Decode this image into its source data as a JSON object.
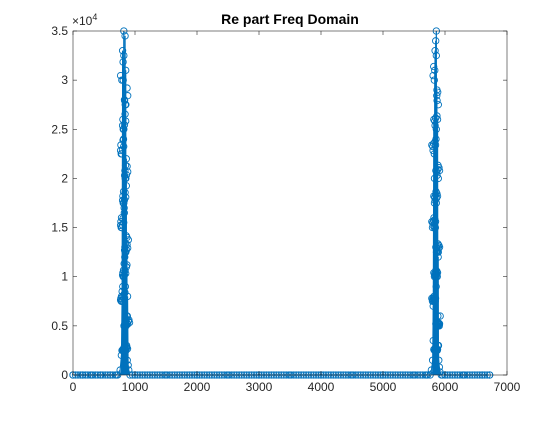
{
  "chart_data": {
    "type": "scatter",
    "title": "Re part Freq Domain",
    "xlabel": "",
    "ylabel": "",
    "xlim": [
      0,
      7000
    ],
    "ylim": [
      0,
      35000
    ],
    "y_exponent_label": "×10",
    "y_exponent_power": "4",
    "x_ticks": [
      0,
      1000,
      2000,
      3000,
      4000,
      5000,
      6000,
      7000
    ],
    "x_tick_labels": [
      "0",
      "1000",
      "2000",
      "3000",
      "4000",
      "5000",
      "6000",
      "7000"
    ],
    "y_ticks": [
      0,
      5000,
      10000,
      15000,
      20000,
      25000,
      30000,
      35000
    ],
    "y_tick_labels": [
      "0",
      "0.5",
      "1",
      "1.5",
      "2",
      "2.5",
      "3",
      "3.5"
    ],
    "grid": false,
    "color": "#0072BD",
    "marker": "circle",
    "stem_lines": true,
    "series": [
      {
        "x": [
          0,
          150,
          300,
          450,
          600,
          700,
          760,
          780,
          790,
          800,
          805,
          810,
          815,
          820,
          825,
          830,
          835,
          840,
          845,
          850,
          855,
          860,
          865,
          870,
          875,
          880,
          890,
          900,
          920,
          1000,
          1500,
          2000,
          2500,
          3000,
          3500,
          4000,
          4500,
          5000,
          5500,
          5700,
          5780,
          5800,
          5810,
          5820,
          5830,
          5835,
          5840,
          5845,
          5850,
          5855,
          5860,
          5865,
          5870,
          5875,
          5880,
          5885,
          5890,
          5895,
          5900,
          5910,
          5920,
          5940,
          6000,
          6300,
          6600,
          6720
        ],
        "y": [
          0,
          0,
          0,
          0,
          0,
          0,
          500,
          2000,
          7500,
          33000,
          26000,
          30000,
          24000,
          35000,
          17000,
          28000,
          12000,
          34500,
          9000,
          31000,
          5000,
          22000,
          3000,
          14000,
          1500,
          8000,
          1000,
          500,
          0,
          0,
          0,
          0,
          0,
          0,
          0,
          0,
          0,
          0,
          0,
          0,
          500,
          1500,
          7000,
          26000,
          20000,
          31000,
          33000,
          15000,
          34000,
          24000,
          35000,
          18000,
          29000,
          10000,
          26000,
          6000,
          12000,
          3000,
          1500,
          800,
          300,
          0,
          0,
          0,
          0,
          0
        ]
      }
    ]
  }
}
